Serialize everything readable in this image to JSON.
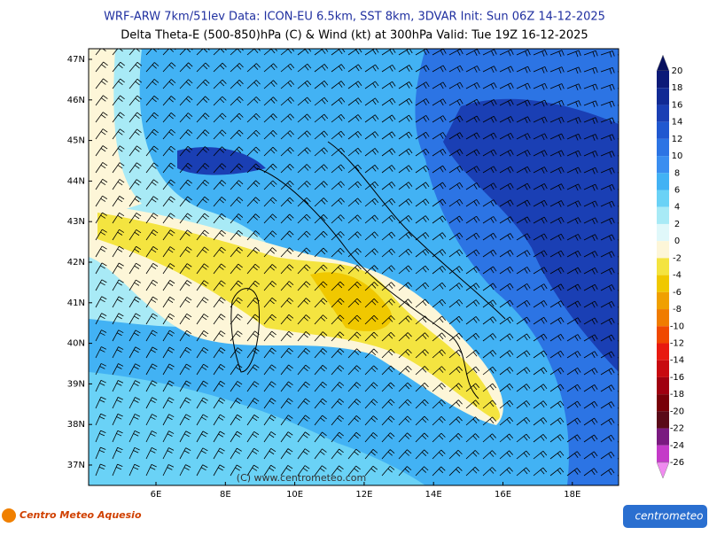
{
  "header": {
    "line1": "WRF-ARW 7km/51lev   Data: ICON-EU 6.5km, SST 8km, 3DVAR   Init: Sun 06Z 14-12-2025",
    "line2": "Delta Theta-E (500-850)hPa (C) & Wind (kt) at 300hPa    Valid: Tue 19Z 16-12-2025"
  },
  "map": {
    "lat_labels": [
      "47N",
      "46N",
      "45N",
      "44N",
      "43N",
      "42N",
      "41N",
      "40N",
      "39N",
      "38N",
      "37N"
    ],
    "lon_labels": [
      "6E",
      "8E",
      "10E",
      "12E",
      "14E",
      "16E",
      "18E"
    ],
    "watermark": "(C) www.centrometeo.com"
  },
  "colorbar": {
    "levels": [
      20,
      18,
      16,
      14,
      12,
      10,
      8,
      6,
      4,
      2,
      0,
      -2,
      -4,
      -6,
      -8,
      -10,
      -12,
      -14,
      -16,
      -18,
      -20,
      -22,
      -24,
      -26
    ],
    "colors": [
      "#08105e",
      "#0c1a78",
      "#112a94",
      "#1a3fb4",
      "#2058d0",
      "#2c74e4",
      "#3a8ef0",
      "#42b2f4",
      "#6ad2f6",
      "#a8eaf6",
      "#e0f8fa",
      "#fdf6d8",
      "#f4e440",
      "#f0c800",
      "#f0a000",
      "#f07c00",
      "#f04800",
      "#e81a10",
      "#c80a10",
      "#a00010",
      "#780008",
      "#5a0a18",
      "#7a1a80",
      "#c43ac8",
      "#f08af0"
    ]
  },
  "footer": {
    "left": "Centro Meteo Aquesio",
    "right": "centrometeo"
  }
}
